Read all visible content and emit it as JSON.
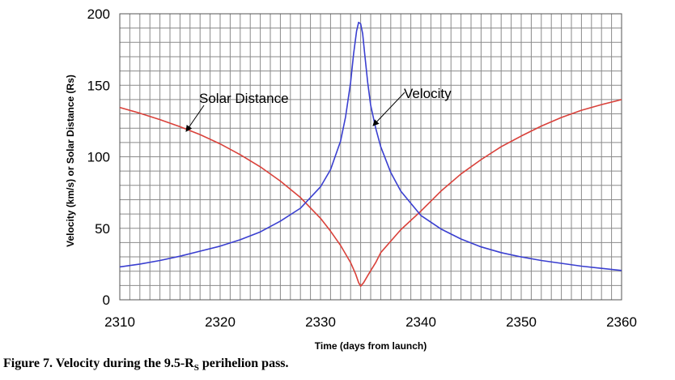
{
  "chart_data": {
    "type": "line",
    "xlabel": "Time (days from launch)",
    "ylabel": "Velocity (km/s) or Solar Distance (Rs)",
    "xlim": [
      2310,
      2360
    ],
    "ylim": [
      0,
      200
    ],
    "xticks": [
      "2310",
      "2320",
      "2330",
      "2340",
      "2350",
      "2360"
    ],
    "yticks": [
      "0",
      "50",
      "100",
      "150",
      "200"
    ],
    "grid": true,
    "minor_x_step": 1,
    "minor_y_step": 10,
    "series": [
      {
        "name": "Solar Distance",
        "color": "#d9413a",
        "x": [
          2310,
          2312,
          2314,
          2316,
          2318,
          2320,
          2322,
          2324,
          2326,
          2328,
          2330,
          2331,
          2332,
          2333,
          2333.5,
          2333.8,
          2334,
          2334.3,
          2334.8,
          2335.5,
          2336,
          2338,
          2340,
          2342,
          2344,
          2346,
          2348,
          2350,
          2352,
          2354,
          2356,
          2358,
          2360
        ],
        "values": [
          134.5,
          130.5,
          126,
          121,
          115.5,
          109,
          101.5,
          93,
          83,
          71.5,
          57,
          48,
          38,
          26,
          18,
          12,
          9.5,
          12,
          18,
          26,
          33,
          49,
          62,
          76,
          88,
          98,
          107,
          114.5,
          121.5,
          127.5,
          132.5,
          136.5,
          140
        ]
      },
      {
        "name": "Velocity",
        "color": "#3a3fd0",
        "x": [
          2310,
          2312,
          2314,
          2316,
          2318,
          2320,
          2322,
          2324,
          2326,
          2328,
          2330,
          2331,
          2332,
          2332.5,
          2333,
          2333.3,
          2333.6,
          2333.8,
          2334,
          2334.2,
          2334.4,
          2334.7,
          2335,
          2335.5,
          2336,
          2337,
          2338,
          2340,
          2342,
          2344,
          2346,
          2348,
          2350,
          2352,
          2354,
          2356,
          2358,
          2360
        ],
        "values": [
          23,
          25,
          27.5,
          30.5,
          34,
          37.5,
          42,
          47.5,
          55,
          64,
          79,
          91,
          111,
          128,
          152,
          172,
          188,
          194,
          193,
          186,
          172,
          152,
          136,
          120,
          107,
          89,
          76,
          59,
          49.5,
          42.5,
          37,
          33,
          30,
          27.5,
          25.5,
          23.5,
          22,
          20.5
        ]
      }
    ],
    "annotations": [
      {
        "text": "Solar Distance"
      },
      {
        "text": "Velocity"
      }
    ]
  },
  "caption": {
    "prefix": "Figure 7.  Velocity during the 9.5-R",
    "subscript": "S",
    "suffix": " perihelion pass."
  }
}
